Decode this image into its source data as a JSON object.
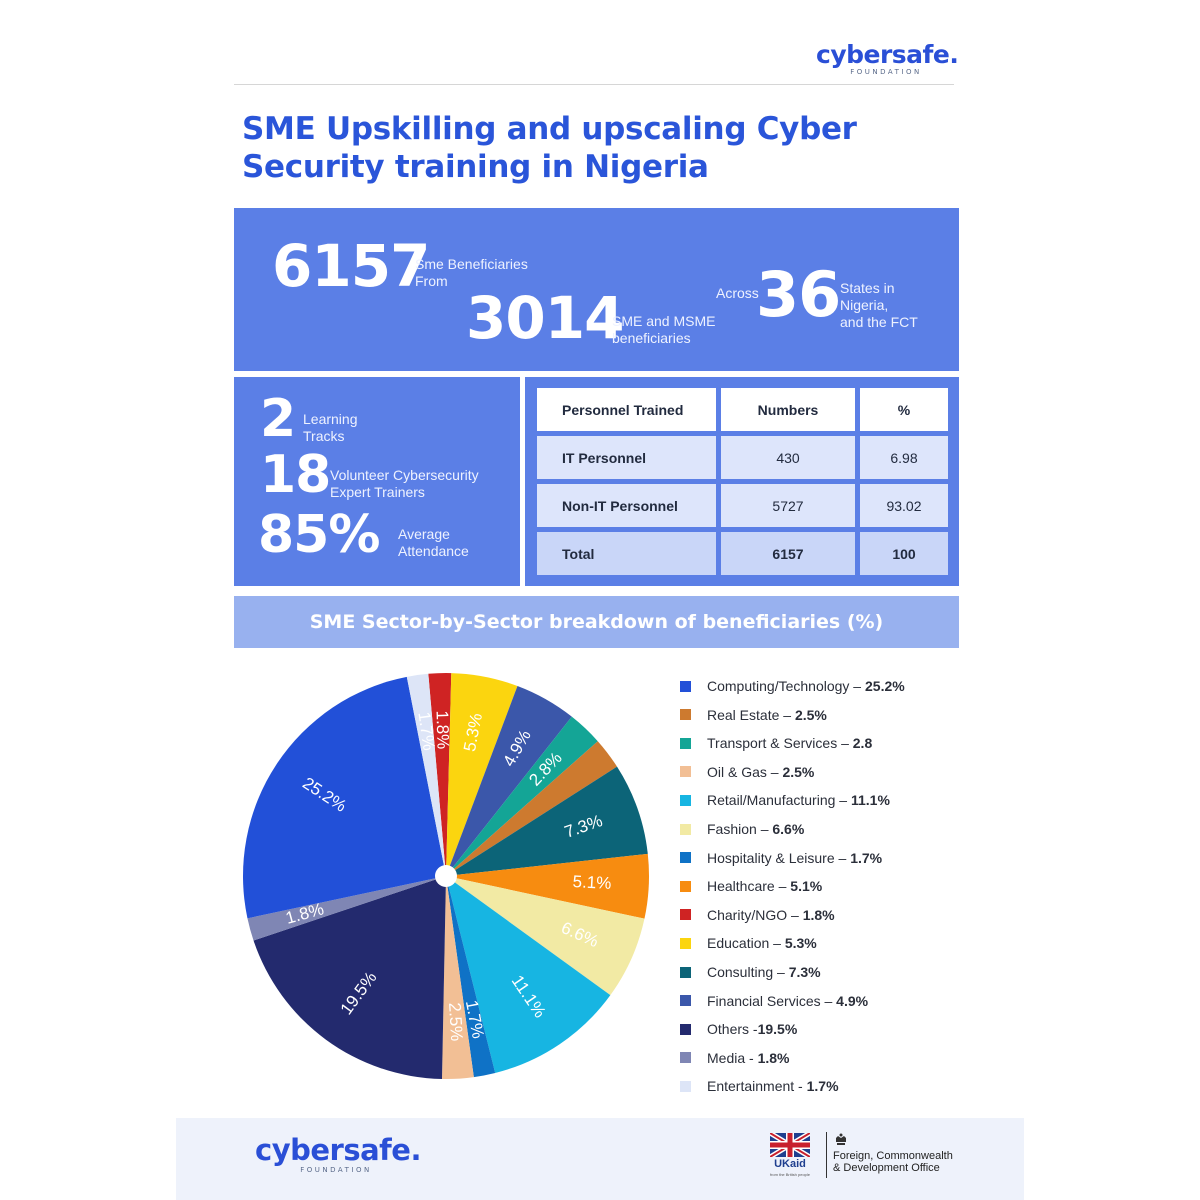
{
  "header": {
    "logo_text": "cybersafe.",
    "logo_sub": "FOUNDATION"
  },
  "title": {
    "line1": "SME Upskilling and upscaling Cyber",
    "line2": "Security training in Nigeria"
  },
  "stats_top": {
    "beneficiaries_number": "6157",
    "beneficiaries_label_1": "Sme Beneficiaries",
    "beneficiaries_label_2": "From",
    "sme_number": "3014",
    "sme_label_1": "SME and MSME",
    "sme_label_2": "beneficiaries",
    "across_label": "Across",
    "states_number": "36",
    "states_label_1": "States in",
    "states_label_2": "Nigeria,",
    "states_label_3": "and the FCT"
  },
  "stats_left": {
    "tracks_number": "2",
    "tracks_label_1": "Learning",
    "tracks_label_2": "Tracks",
    "trainers_number": "18",
    "trainers_label_1": "Volunteer Cybersecurity",
    "trainers_label_2": "Expert Trainers",
    "attendance_number": "85%",
    "attendance_label_1": "Average",
    "attendance_label_2": "Attendance"
  },
  "personnel_table": {
    "headers": [
      "Personnel Trained",
      "Numbers",
      "%"
    ],
    "rows": [
      [
        "IT Personnel",
        "430",
        "6.98"
      ],
      [
        "Non-IT Personnel",
        "5727",
        "93.02"
      ],
      [
        "Total",
        "6157",
        "100"
      ]
    ]
  },
  "section_title": "SME Sector-by-Sector breakdown of beneficiaries (%)",
  "chart_data": {
    "type": "pie",
    "title": "SME Sector-by-Sector breakdown of beneficiaries (%)",
    "slices": [
      {
        "label": "Computing/Technology",
        "value": 25.2,
        "slice_label": "25.2%",
        "legend_name": "Computing/Technology – ",
        "legend_value": "25.2%",
        "color": "#2250d8"
      },
      {
        "label": "Real Estate",
        "value": 2.5,
        "slice_label": "",
        "legend_name": "Real Estate – ",
        "legend_value": "2.5%",
        "color": "#cd7a2f"
      },
      {
        "label": "Transport & Services",
        "value": 2.8,
        "slice_label": "2.8%",
        "legend_name": "Transport & Services – ",
        "legend_value": "2.8",
        "color": "#14a596"
      },
      {
        "label": "Oil & Gas",
        "value": 2.5,
        "slice_label": "2.5%",
        "legend_name": "Oil & Gas – ",
        "legend_value": "2.5%",
        "color": "#f2bf95"
      },
      {
        "label": "Retail/Manufacturing",
        "value": 11.1,
        "slice_label": "11.1%",
        "legend_name": "Retail/Manufacturing – ",
        "legend_value": "11.1%",
        "color": "#17b5e2"
      },
      {
        "label": "Fashion",
        "value": 6.6,
        "slice_label": "6.6%",
        "legend_name": "Fashion – ",
        "legend_value": "6.6%",
        "color": "#f2eaa4"
      },
      {
        "label": "Hospitality & Leisure",
        "value": 1.7,
        "slice_label": "1.7%",
        "legend_name": "Hospitality & Leisure – ",
        "legend_value": "1.7%",
        "color": "#0f72c6"
      },
      {
        "label": "Healthcare",
        "value": 5.1,
        "slice_label": "5.1%",
        "legend_name": "Healthcare – ",
        "legend_value": "5.1%",
        "color": "#f78c10"
      },
      {
        "label": "Charity/NGO",
        "value": 1.8,
        "slice_label": "1.8%",
        "legend_name": "Charity/NGO – ",
        "legend_value": "1.8%",
        "color": "#cf2323"
      },
      {
        "label": "Education",
        "value": 5.3,
        "slice_label": "5.3%",
        "legend_name": "Education – ",
        "legend_value": "5.3%",
        "color": "#fbd50f"
      },
      {
        "label": "Consulting",
        "value": 7.3,
        "slice_label": "7.3%",
        "legend_name": "Consulting – ",
        "legend_value": "7.3%",
        "color": "#0c6478"
      },
      {
        "label": "Financial Services",
        "value": 4.9,
        "slice_label": "4.9%",
        "legend_name": "Financial Services – ",
        "legend_value": "4.9%",
        "color": "#3b57aa"
      },
      {
        "label": "Others",
        "value": 19.5,
        "slice_label": "19.5%",
        "legend_name": "Others -",
        "legend_value": "19.5%",
        "color": "#232a6e"
      },
      {
        "label": "Media",
        "value": 1.8,
        "slice_label": "1.8%",
        "legend_name": "Media - ",
        "legend_value": "1.8%",
        "color": "#7f86b4"
      },
      {
        "label": "Entertainment",
        "value": 1.7,
        "slice_label": "1.7%",
        "legend_name": "Entertainment - ",
        "legend_value": "1.7%",
        "color": "#dde5f7"
      }
    ],
    "pie_order": [
      "Charity/NGO",
      "Education",
      "Financial Services",
      "Transport & Services",
      "Real Estate",
      "Consulting",
      "Healthcare",
      "Fashion",
      "Retail/Manufacturing",
      "Hospitality & Leisure",
      "Oil & Gas",
      "Others",
      "Media",
      "Computing/Technology",
      "Entertainment"
    ],
    "legend_position": "right"
  },
  "footer": {
    "logo_text": "cybersafe.",
    "logo_sub": "FOUNDATION",
    "ukaid_text": "UKaid",
    "ukaid_small": "from the British people",
    "fcdo_line1": "Foreign, Commonwealth",
    "fcdo_line2": "& Development Office"
  }
}
